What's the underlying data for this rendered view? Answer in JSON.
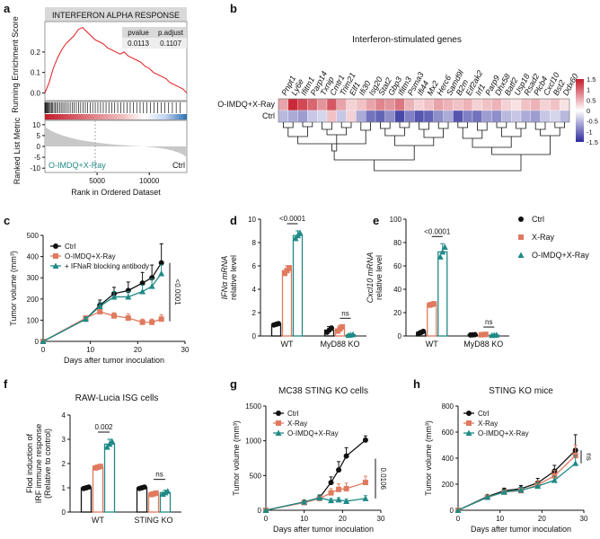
{
  "panels": {
    "a": "a",
    "b": "b",
    "c": "c",
    "d": "d",
    "e": "e",
    "f": "f",
    "g": "g",
    "h": "h"
  },
  "colors": {
    "ctrl": "#111111",
    "xray": "#e07a5f",
    "combo": "#1f8a86",
    "gsea_line": "#e31a1c",
    "heat_high": "#c51b2b",
    "heat_low": "#2c2c9c"
  },
  "chart_data": [
    {
      "id": "a",
      "type": "line",
      "title": "INTERFERON ALPHA RESPONSE",
      "ylabel": "Running Enrichment Score",
      "ylabel2": "Ranked List Metric",
      "xlabel": "Rank in Ordered Dataset",
      "table": {
        "headers": [
          "pvalue",
          "p.adjust"
        ],
        "values": [
          "0.0113",
          "0.1107"
        ]
      },
      "es_yticks": [
        "0.2",
        "0.1",
        "0.0"
      ],
      "metric_yticks": [
        "10",
        "5",
        "0",
        "-5",
        "-10"
      ],
      "xticks": [
        "5000",
        "10000"
      ],
      "left_label": "O-IMDQ+X-Ray",
      "right_label": "Ctrl",
      "x": [
        0,
        400,
        800,
        1200,
        1600,
        2000,
        2400,
        2800,
        3200,
        3600,
        4000,
        4400,
        4800,
        5200,
        5600,
        6000,
        6400,
        6800,
        7200,
        7600,
        8000,
        8400,
        8800,
        9200,
        9600,
        10000,
        10400,
        10800,
        11200,
        11600,
        12000,
        12400,
        12800,
        13200,
        13600
      ],
      "y": [
        0.0,
        0.05,
        0.12,
        0.17,
        0.21,
        0.24,
        0.26,
        0.28,
        0.31,
        0.32,
        0.3,
        0.28,
        0.26,
        0.25,
        0.24,
        0.22,
        0.21,
        0.2,
        0.19,
        0.2,
        0.18,
        0.17,
        0.16,
        0.15,
        0.13,
        0.12,
        0.1,
        0.09,
        0.08,
        0.07,
        0.05,
        0.04,
        0.03,
        0.02,
        0.0
      ]
    },
    {
      "id": "b",
      "type": "heatmap",
      "title": "Interferon-stimulated genes",
      "rows": [
        "O-IMDQ+X-Ray",
        "Ctrl"
      ],
      "columns": [
        "Pnpt1",
        "Ly6e",
        "Ifitm1",
        "Parp14",
        "Txnip",
        "Cmtr1",
        "Trim21",
        "Elf1",
        "Ifi30",
        "Isg20",
        "Stat2",
        "Gbp3",
        "Ifitm3",
        "Psma3",
        "Ifi44",
        "Mx2",
        "Herc6",
        "Samd9l",
        "B2m",
        "Eif2ak2",
        "Irf1",
        "Parp9",
        "Dhx58",
        "Batf2",
        "Usp18",
        "Rsad2",
        "Plcb4",
        "Cxcl10",
        "Bst2",
        "Ddx60"
      ],
      "values": [
        [
          0.6,
          1.4,
          1.2,
          1.0,
          0.7,
          1.1,
          0.6,
          0.3,
          0.4,
          0.6,
          0.8,
          0.7,
          0.9,
          0.5,
          0.3,
          0.4,
          0.6,
          0.5,
          0.4,
          0.5,
          0.3,
          0.4,
          0.5,
          0.3,
          0.2,
          0.4,
          0.5,
          0.3,
          0.4,
          0.2
        ],
        [
          -0.5,
          -0.6,
          -0.7,
          -0.4,
          -0.3,
          0.4,
          -0.4,
          0.3,
          -0.6,
          -1.0,
          -1.1,
          -0.8,
          -1.3,
          -0.9,
          -1.2,
          -1.1,
          -0.8,
          -0.6,
          -1.2,
          -0.9,
          -1.0,
          -0.7,
          -0.8,
          -0.5,
          -0.4,
          -0.6,
          -0.7,
          -0.4,
          -0.3,
          -0.5
        ]
      ],
      "legend_ticks": [
        "1.5",
        "1",
        "0.5",
        "0",
        "-0.5",
        "-1",
        "-1.5"
      ]
    },
    {
      "id": "c",
      "type": "line",
      "ylabel": "Tumor volume (mm³)",
      "xlabel": "Days after tumor inoculation",
      "xlim": [
        0,
        30
      ],
      "ylim": [
        0,
        500
      ],
      "xticks": [
        "0",
        "10",
        "20",
        "30"
      ],
      "yticks": [
        "0",
        "100",
        "200",
        "300",
        "400",
        "500"
      ],
      "annotation": "<0.0001",
      "series": [
        {
          "name": "Ctrl",
          "x": [
            0,
            9,
            12,
            15,
            18,
            21,
            23,
            25
          ],
          "y": [
            0,
            105,
            170,
            225,
            240,
            275,
            300,
            370
          ],
          "err": [
            0,
            10,
            25,
            30,
            40,
            50,
            60,
            90
          ]
        },
        {
          "name": "O-IMDQ+X-Ray",
          "x": [
            0,
            9,
            12,
            15,
            18,
            21,
            23,
            25
          ],
          "y": [
            0,
            110,
            140,
            120,
            110,
            90,
            90,
            105
          ],
          "err": [
            0,
            10,
            20,
            15,
            20,
            15,
            15,
            20
          ]
        },
        {
          "name": "+ IFNaR blocking antibody",
          "x": [
            0,
            9,
            12,
            15,
            18,
            21,
            23,
            25
          ],
          "y": [
            0,
            105,
            165,
            210,
            210,
            235,
            260,
            320
          ],
          "err": [
            0,
            10,
            20,
            25,
            25,
            30,
            35,
            40
          ]
        }
      ]
    },
    {
      "id": "d",
      "type": "bar",
      "ylabel": "IFNα mRNA relative level",
      "categories": [
        "WT",
        "MyD88 KO"
      ],
      "ylim": [
        0,
        10
      ],
      "yticks": [
        "0",
        "2",
        "4",
        "6",
        "8",
        "10"
      ],
      "significance": [
        "<0.0001",
        "ns"
      ],
      "series": [
        {
          "name": "Ctrl",
          "values": [
            1.0,
            0.5
          ],
          "err": [
            0.1,
            0.3
          ]
        },
        {
          "name": "X-Ray",
          "values": [
            5.6,
            0.6
          ],
          "err": [
            0.4,
            0.3
          ]
        },
        {
          "name": "O-IMDQ+X-Ray",
          "values": [
            8.6,
            0.1
          ],
          "err": [
            0.4,
            0.05
          ]
        }
      ]
    },
    {
      "id": "e",
      "type": "bar",
      "ylabel": "Cxcl10 mRNA relative level",
      "categories": [
        "WT",
        "MyD88 KO"
      ],
      "ylim": [
        0,
        100
      ],
      "yticks": [
        "0",
        "20",
        "40",
        "60",
        "80",
        "100"
      ],
      "significance": [
        "<0.0001",
        "ns"
      ],
      "series": [
        {
          "name": "Ctrl",
          "values": [
            3,
            1
          ],
          "err": [
            1.5,
            0.3
          ]
        },
        {
          "name": "X-Ray",
          "values": [
            27,
            1.2
          ],
          "err": [
            1.0,
            0.3
          ]
        },
        {
          "name": "O-IMDQ+X-Ray",
          "values": [
            72,
            0.8
          ],
          "err": [
            7,
            0.3
          ]
        }
      ]
    },
    {
      "id": "f",
      "type": "bar",
      "title": "RAW-Lucia ISG cells",
      "ylabel": "Flod induction of IRF immune response (Relative to control)",
      "categories": [
        "WT",
        "STING KO"
      ],
      "ylim": [
        0,
        4
      ],
      "yticks": [
        "0",
        "1",
        "2",
        "3",
        "4"
      ],
      "significance": [
        "0.002",
        "ns"
      ],
      "series": [
        {
          "name": "Ctrl",
          "values": [
            1.0,
            1.0
          ],
          "err": [
            0.05,
            0.05
          ]
        },
        {
          "name": "X-Ray",
          "values": [
            1.85,
            0.75
          ],
          "err": [
            0.05,
            0.05
          ]
        },
        {
          "name": "O-IMDQ+X-Ray",
          "values": [
            2.8,
            0.8
          ],
          "err": [
            0.2,
            0.1
          ]
        }
      ]
    },
    {
      "id": "g",
      "type": "line",
      "title": "MC38 STING KO cells",
      "ylabel": "Tumor volume (mm³)",
      "xlabel": "Days after tumor inoculation",
      "xlim": [
        0,
        30
      ],
      "ylim": [
        0,
        1500
      ],
      "xticks": [
        "0",
        "10",
        "20",
        "30"
      ],
      "yticks": [
        "0",
        "500",
        "1000",
        "1500"
      ],
      "annotation": "0.0106",
      "series": [
        {
          "name": "Ctrl",
          "x": [
            0,
            10,
            14,
            17,
            19,
            21,
            26
          ],
          "y": [
            0,
            120,
            180,
            400,
            580,
            780,
            1010
          ],
          "err": [
            0,
            20,
            40,
            80,
            120,
            120,
            60
          ]
        },
        {
          "name": "X-Ray",
          "x": [
            0,
            10,
            14,
            17,
            19,
            21,
            26
          ],
          "y": [
            0,
            110,
            170,
            250,
            300,
            310,
            400
          ],
          "err": [
            0,
            20,
            30,
            60,
            80,
            80,
            90
          ]
        },
        {
          "name": "O-IMDQ+X-Ray",
          "x": [
            0,
            10,
            14,
            17,
            19,
            21,
            26
          ],
          "y": [
            0,
            120,
            180,
            140,
            150,
            130,
            170
          ],
          "err": [
            0,
            15,
            30,
            30,
            30,
            30,
            40
          ]
        }
      ]
    },
    {
      "id": "h",
      "type": "line",
      "title": "STING KO mice",
      "ylabel": "Tumor volume (mm³)",
      "xlabel": "Days after tumor inoculation",
      "xlim": [
        0,
        30
      ],
      "ylim": [
        0,
        800
      ],
      "xticks": [
        "0",
        "10",
        "20",
        "30"
      ],
      "yticks": [
        "0",
        "200",
        "400",
        "600",
        "800"
      ],
      "annotation": "ns",
      "series": [
        {
          "name": "Ctrl",
          "x": [
            0,
            7,
            11,
            15,
            19,
            23,
            28
          ],
          "y": [
            0,
            105,
            150,
            165,
            210,
            300,
            460
          ],
          "err": [
            0,
            10,
            20,
            25,
            35,
            45,
            120
          ]
        },
        {
          "name": "X-Ray",
          "x": [
            0,
            7,
            11,
            15,
            19,
            23,
            28
          ],
          "y": [
            0,
            100,
            140,
            150,
            195,
            265,
            420
          ],
          "err": [
            0,
            10,
            15,
            20,
            30,
            40,
            80
          ]
        },
        {
          "name": "O-IMDQ+X-Ray",
          "x": [
            0,
            7,
            11,
            15,
            19,
            23,
            28
          ],
          "y": [
            0,
            100,
            140,
            155,
            185,
            230,
            360
          ],
          "err": [
            0,
            10,
            15,
            20,
            25,
            30,
            60
          ]
        }
      ]
    }
  ],
  "legend_de": [
    "Ctrl",
    "X-Ray",
    "O-IMDQ+X-Ray"
  ]
}
